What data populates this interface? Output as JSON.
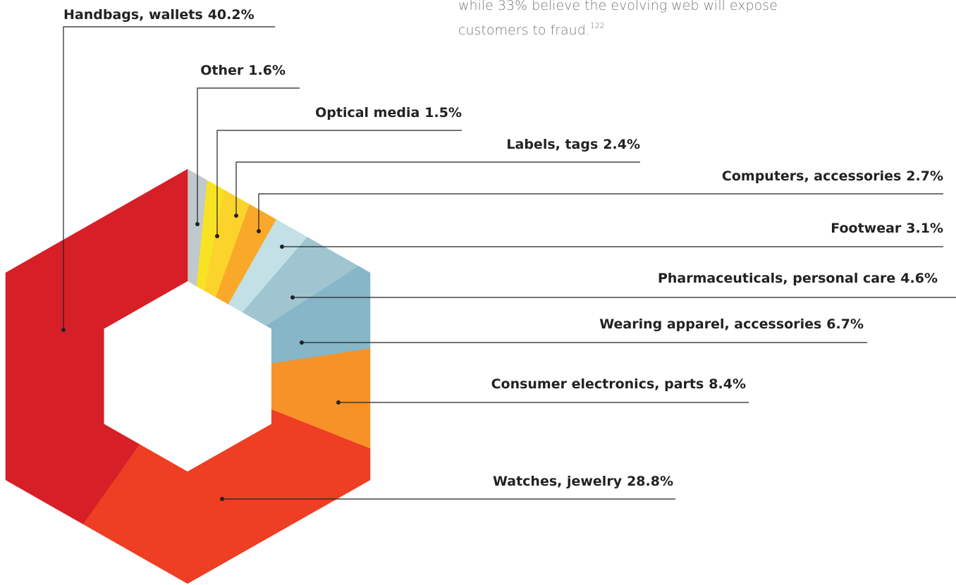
{
  "chart_data": {
    "type": "pie",
    "annotation": {
      "lines": [
        "while 33% believe the evolving web will expose",
        "customers to fraud."
      ],
      "superscript": "122"
    },
    "categories": [
      "Other",
      "Optical media",
      "Labels, tags",
      "Computers, accessories",
      "Footwear",
      "Pharmaceuticals, personal care",
      "Wearing apparel, accessories",
      "Consumer electronics, parts",
      "Watches, jewelry",
      "Handbags, wallets"
    ],
    "values": [
      1.6,
      1.5,
      2.4,
      2.7,
      3.1,
      4.6,
      6.7,
      8.4,
      28.8,
      40.2
    ],
    "value_labels": [
      "1.6%",
      "1.5%",
      "2.4%",
      "2.7%",
      "3.1%",
      "4.6%",
      "6.7%",
      "8.4%",
      "28.8%",
      "40.2%"
    ],
    "colors": [
      "#c0c9cc",
      "#f7e324",
      "#fcd32a",
      "#f9a82a",
      "#c2e0e6",
      "#9fc5d0",
      "#86b6c7",
      "#f69228",
      "#ee3e24",
      "#d61f27"
    ]
  }
}
